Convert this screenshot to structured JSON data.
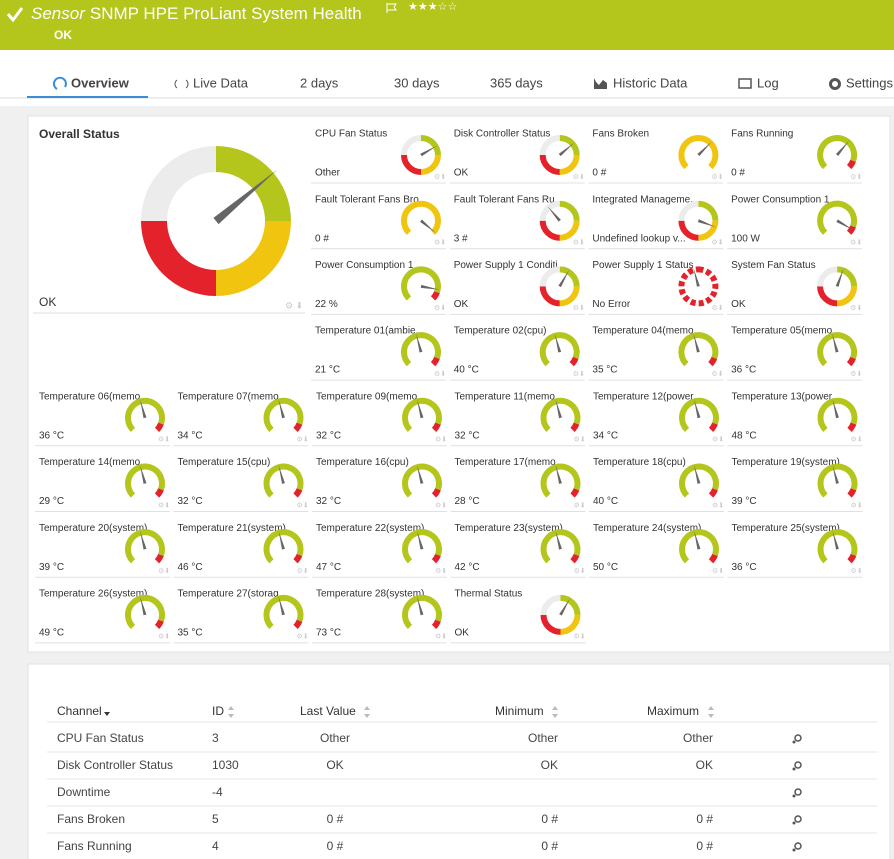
{
  "header": {
    "prefix": "Sensor",
    "title": "SNMP HPE ProLiant System Health",
    "status": "OK"
  },
  "tabs": [
    "Overview",
    "Live Data",
    "2 days",
    "30 days",
    "365 days",
    "Historic Data",
    "Log",
    "Settings"
  ],
  "overall": {
    "label": "Overall Status",
    "value": "OK"
  },
  "tiles": [
    {
      "name": "CPU Fan Status",
      "value": "Other"
    },
    {
      "name": "Disk Controller Status",
      "value": "OK"
    },
    {
      "name": "Fans Broken",
      "value": "0 #"
    },
    {
      "name": "Fans Running",
      "value": "0 #"
    },
    {
      "name": "Fault Tolerant Fans Bro...",
      "value": "0 #"
    },
    {
      "name": "Fault Tolerant Fans Ru...",
      "value": "3 #"
    },
    {
      "name": "Integrated Manageme...",
      "value": "Undefined lookup v..."
    },
    {
      "name": "Power Consumption 1",
      "value": "100 W"
    },
    {
      "name": "Power Consumption 1 ...",
      "value": "22 %"
    },
    {
      "name": "Power Supply 1 Conditi...",
      "value": "OK"
    },
    {
      "name": "Power Supply 1 Status",
      "value": "No Error"
    },
    {
      "name": "System Fan Status",
      "value": "OK"
    },
    {
      "name": "Temperature 01(ambie...",
      "value": "21 °C"
    },
    {
      "name": "Temperature 02(cpu)",
      "value": "40 °C"
    },
    {
      "name": "Temperature 04(memo...",
      "value": "35 °C"
    },
    {
      "name": "Temperature 05(memo...",
      "value": "36 °C"
    },
    {
      "name": "Temperature 06(memo...",
      "value": "36 °C"
    },
    {
      "name": "Temperature 07(memo...",
      "value": "34 °C"
    },
    {
      "name": "Temperature 09(memo...",
      "value": "32 °C"
    },
    {
      "name": "Temperature 11(memo...",
      "value": "32 °C"
    },
    {
      "name": "Temperature 12(power...",
      "value": "34 °C"
    },
    {
      "name": "Temperature 13(power...",
      "value": "48 °C"
    },
    {
      "name": "Temperature 14(memo...",
      "value": "29 °C"
    },
    {
      "name": "Temperature 15(cpu)",
      "value": "32 °C"
    },
    {
      "name": "Temperature 16(cpu)",
      "value": "32 °C"
    },
    {
      "name": "Temperature 17(memo...",
      "value": "28 °C"
    },
    {
      "name": "Temperature 18(cpu)",
      "value": "40 °C"
    },
    {
      "name": "Temperature 19(system)",
      "value": "39 °C"
    },
    {
      "name": "Temperature 20(system)",
      "value": "39 °C"
    },
    {
      "name": "Temperature 21(system)",
      "value": "46 °C"
    },
    {
      "name": "Temperature 22(system)",
      "value": "47 °C"
    },
    {
      "name": "Temperature 23(system)",
      "value": "42 °C"
    },
    {
      "name": "Temperature 24(system)",
      "value": "50 °C"
    },
    {
      "name": "Temperature 25(system)",
      "value": "36 °C"
    },
    {
      "name": "Temperature 26(system)",
      "value": "49 °C"
    },
    {
      "name": "Temperature 27(storag...",
      "value": "35 °C"
    },
    {
      "name": "Temperature 28(system)",
      "value": "73 °C"
    },
    {
      "name": "Thermal Status",
      "value": "OK"
    }
  ],
  "table": {
    "columns": [
      "Channel",
      "ID",
      "Last Value",
      "Minimum",
      "Maximum"
    ],
    "rows": [
      [
        "CPU Fan Status",
        "3",
        "Other",
        "Other",
        "Other"
      ],
      [
        "Disk Controller Status",
        "1030",
        "OK",
        "OK",
        "OK"
      ],
      [
        "Downtime",
        "-4",
        null,
        null,
        null
      ],
      [
        "Fans Broken",
        "5",
        "0 #",
        "0 #",
        "0 #"
      ],
      [
        "Fans Running",
        "4",
        "0 #",
        "0 #",
        "0 #"
      ]
    ]
  }
}
